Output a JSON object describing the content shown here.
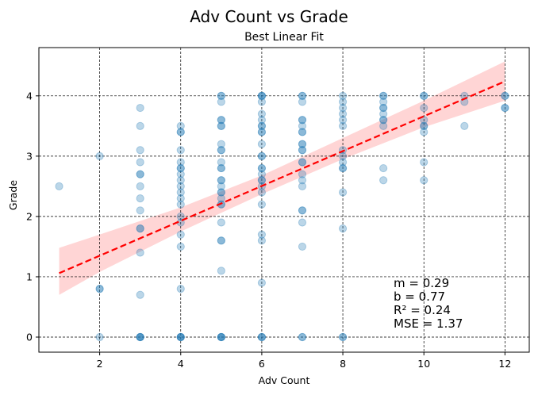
{
  "chart_data": {
    "type": "scatter",
    "suptitle": "Adv Count vs Grade",
    "title": "Best Linear Fit",
    "xlabel": "Adv Count",
    "ylabel": "Grade",
    "xlim": [
      0.5,
      12.6
    ],
    "ylim": [
      -0.25,
      4.8
    ],
    "xticks": [
      2,
      4,
      6,
      8,
      10,
      12
    ],
    "yticks": [
      0,
      1,
      2,
      3,
      4
    ],
    "grid": true,
    "colors": {
      "points": "#1f77b4",
      "fit_line": "#ff0000",
      "band": "#ffb3b3"
    },
    "points": [
      [
        1,
        2.5
      ],
      [
        2,
        3.0
      ],
      [
        2,
        0.8
      ],
      [
        2,
        0.8
      ],
      [
        2,
        0.0
      ],
      [
        3,
        3.8
      ],
      [
        3,
        3.5
      ],
      [
        3,
        3.1
      ],
      [
        3,
        2.9
      ],
      [
        3,
        2.7
      ],
      [
        3,
        2.7
      ],
      [
        3,
        2.5
      ],
      [
        3,
        2.3
      ],
      [
        3,
        2.1
      ],
      [
        3,
        1.8
      ],
      [
        3,
        1.8
      ],
      [
        3,
        1.4
      ],
      [
        3,
        0.7
      ],
      [
        3,
        0.0
      ],
      [
        3,
        0.0
      ],
      [
        3,
        0.0
      ],
      [
        3,
        0.0
      ],
      [
        4,
        3.5
      ],
      [
        4,
        3.4
      ],
      [
        4,
        3.4
      ],
      [
        4,
        3.1
      ],
      [
        4,
        2.9
      ],
      [
        4,
        2.8
      ],
      [
        4,
        2.8
      ],
      [
        4,
        2.7
      ],
      [
        4,
        2.6
      ],
      [
        4,
        2.5
      ],
      [
        4,
        2.4
      ],
      [
        4,
        2.3
      ],
      [
        4,
        2.2
      ],
      [
        4,
        2.0
      ],
      [
        4,
        1.9
      ],
      [
        4,
        1.7
      ],
      [
        4,
        1.5
      ],
      [
        4,
        0.8
      ],
      [
        4,
        0.0
      ],
      [
        4,
        0.0
      ],
      [
        4,
        0.0
      ],
      [
        4,
        0.0
      ],
      [
        5,
        4.0
      ],
      [
        5,
        4.0
      ],
      [
        5,
        3.9
      ],
      [
        5,
        3.6
      ],
      [
        5,
        3.6
      ],
      [
        5,
        3.5
      ],
      [
        5,
        3.5
      ],
      [
        5,
        3.2
      ],
      [
        5,
        3.1
      ],
      [
        5,
        3.1
      ],
      [
        5,
        2.9
      ],
      [
        5,
        2.8
      ],
      [
        5,
        2.8
      ],
      [
        5,
        2.6
      ],
      [
        5,
        2.6
      ],
      [
        5,
        2.5
      ],
      [
        5,
        2.4
      ],
      [
        5,
        2.4
      ],
      [
        5,
        2.3
      ],
      [
        5,
        2.2
      ],
      [
        5,
        2.2
      ],
      [
        5,
        1.9
      ],
      [
        5,
        1.6
      ],
      [
        5,
        1.6
      ],
      [
        5,
        1.1
      ],
      [
        5,
        0.0
      ],
      [
        5,
        0.0
      ],
      [
        5,
        0.0
      ],
      [
        5,
        0.0
      ],
      [
        6,
        4.0
      ],
      [
        6,
        4.0
      ],
      [
        6,
        4.0
      ],
      [
        6,
        3.9
      ],
      [
        6,
        3.7
      ],
      [
        6,
        3.6
      ],
      [
        6,
        3.5
      ],
      [
        6,
        3.5
      ],
      [
        6,
        3.4
      ],
      [
        6,
        3.4
      ],
      [
        6,
        3.2
      ],
      [
        6,
        3.0
      ],
      [
        6,
        3.0
      ],
      [
        6,
        2.8
      ],
      [
        6,
        2.8
      ],
      [
        6,
        2.7
      ],
      [
        6,
        2.6
      ],
      [
        6,
        2.6
      ],
      [
        6,
        2.5
      ],
      [
        6,
        2.4
      ],
      [
        6,
        2.2
      ],
      [
        6,
        1.7
      ],
      [
        6,
        1.6
      ],
      [
        6,
        0.9
      ],
      [
        6,
        0.0
      ],
      [
        6,
        0.0
      ],
      [
        6,
        0.0
      ],
      [
        7,
        4.0
      ],
      [
        7,
        4.0
      ],
      [
        7,
        3.9
      ],
      [
        7,
        3.6
      ],
      [
        7,
        3.6
      ],
      [
        7,
        3.5
      ],
      [
        7,
        3.4
      ],
      [
        7,
        3.4
      ],
      [
        7,
        3.2
      ],
      [
        7,
        3.2
      ],
      [
        7,
        3.1
      ],
      [
        7,
        3.1
      ],
      [
        7,
        2.9
      ],
      [
        7,
        2.9
      ],
      [
        7,
        2.7
      ],
      [
        7,
        2.6
      ],
      [
        7,
        2.5
      ],
      [
        7,
        2.1
      ],
      [
        7,
        2.1
      ],
      [
        7,
        1.9
      ],
      [
        7,
        1.5
      ],
      [
        7,
        0.0
      ],
      [
        7,
        0.0
      ],
      [
        8,
        4.0
      ],
      [
        8,
        3.9
      ],
      [
        8,
        3.8
      ],
      [
        8,
        3.7
      ],
      [
        8,
        3.6
      ],
      [
        8,
        3.5
      ],
      [
        8,
        3.1
      ],
      [
        8,
        3.0
      ],
      [
        8,
        2.9
      ],
      [
        8,
        2.8
      ],
      [
        8,
        2.8
      ],
      [
        8,
        2.4
      ],
      [
        8,
        1.8
      ],
      [
        8,
        0.0
      ],
      [
        8,
        0.0
      ],
      [
        9,
        4.0
      ],
      [
        9,
        4.0
      ],
      [
        9,
        3.9
      ],
      [
        9,
        3.8
      ],
      [
        9,
        3.8
      ],
      [
        9,
        3.7
      ],
      [
        9,
        3.6
      ],
      [
        9,
        3.6
      ],
      [
        9,
        3.5
      ],
      [
        9,
        2.8
      ],
      [
        9,
        2.6
      ],
      [
        10,
        4.0
      ],
      [
        10,
        4.0
      ],
      [
        10,
        3.8
      ],
      [
        10,
        3.6
      ],
      [
        10,
        3.5
      ],
      [
        10,
        3.5
      ],
      [
        10,
        3.4
      ],
      [
        10,
        2.9
      ],
      [
        10,
        2.6
      ],
      [
        11,
        4.0
      ],
      [
        11,
        3.9
      ],
      [
        11,
        3.5
      ],
      [
        12,
        4.0
      ],
      [
        12,
        4.0
      ],
      [
        12,
        3.8
      ],
      [
        12,
        3.8
      ]
    ],
    "fit": {
      "m": 0.29,
      "b": 0.77,
      "x_range": [
        1,
        12
      ],
      "y_start": 1.06,
      "y_end": 4.24
    },
    "confidence_band": {
      "x": [
        1,
        2,
        4,
        6,
        8,
        10,
        12
      ],
      "lower": [
        0.7,
        1.08,
        1.75,
        2.37,
        2.95,
        3.48,
        3.92
      ],
      "upper": [
        1.48,
        1.7,
        2.15,
        2.68,
        3.3,
        3.92,
        4.57
      ]
    },
    "stats_lines": [
      "m = 0.29",
      "b = 0.77",
      "R² = 0.24",
      "MSE = 1.37"
    ]
  }
}
